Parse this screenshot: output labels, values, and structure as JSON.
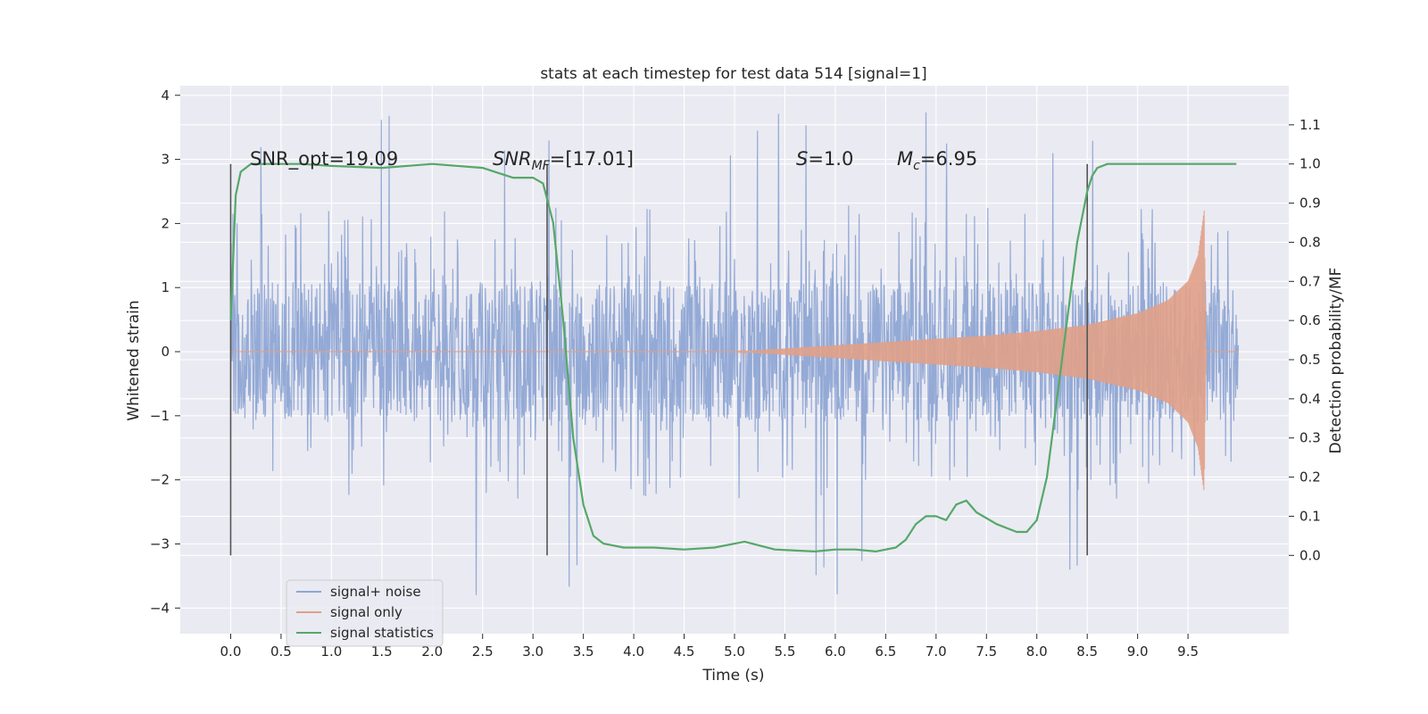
{
  "chart_data": {
    "type": "line",
    "title": "stats at each timestep for test data 514 [signal=1]",
    "xlabel": "Time (s)",
    "ylabel": "Whitened strain",
    "ylabel_right": "Detection probability/MF",
    "xlim": [
      -0.5,
      10.5
    ],
    "ylim": [
      -4.4,
      4.15
    ],
    "ylim_right": [
      -0.2,
      1.2
    ],
    "x_ticks": [
      "0.0",
      "0.5",
      "1.0",
      "1.5",
      "2.0",
      "2.5",
      "3.0",
      "3.5",
      "4.0",
      "4.5",
      "5.0",
      "5.5",
      "6.0",
      "6.5",
      "7.0",
      "7.5",
      "8.0",
      "8.5",
      "9.0",
      "9.5"
    ],
    "y_ticks": [
      "4",
      "3",
      "2",
      "1",
      "0",
      "−1",
      "−2",
      "−3",
      "−4"
    ],
    "y_ticks_right": [
      "1.1",
      "1.0",
      "0.9",
      "0.8",
      "0.7",
      "0.6",
      "0.5",
      "0.4",
      "0.3",
      "0.2",
      "0.1",
      "0.0"
    ],
    "grid": true,
    "legend_placement": "lower-left",
    "annotations": {
      "snr_opt": "SNR_opt=19.09",
      "snr_mf_main": "SNR",
      "snr_mf_sub": "MF",
      "snr_mf_value": "=[17.01]",
      "s_main": "S",
      "s_value": "=1.0",
      "mc_main": "M",
      "mc_sub": "c",
      "mc_value": "=6.95"
    },
    "vertical_markers_x": [
      0.0,
      3.14,
      8.5
    ],
    "series": [
      {
        "name": "signal+ noise",
        "color": "#8fa6d4",
        "axis": "left",
        "kind": "noise",
        "duration": 10.0,
        "band": 1.1,
        "typical_peak": 2.3,
        "extreme_peak": 3.8
      },
      {
        "name": "signal only",
        "color": "#e0a088",
        "axis": "left",
        "kind": "chirp",
        "envelope_x": [
          0.0,
          5.0,
          5.5,
          6.0,
          6.5,
          7.0,
          7.5,
          8.0,
          8.5,
          9.0,
          9.3,
          9.5,
          9.6,
          9.66,
          9.68,
          10.0
        ],
        "envelope_y": [
          0.0,
          0.0,
          0.05,
          0.1,
          0.15,
          0.2,
          0.25,
          0.32,
          0.42,
          0.6,
          0.8,
          1.1,
          1.5,
          2.2,
          0.0,
          0.0
        ]
      },
      {
        "name": "signal statistics",
        "color": "#55a868",
        "axis": "right",
        "x": [
          0.0,
          0.05,
          0.1,
          0.15,
          0.2,
          0.4,
          0.7,
          1.0,
          1.5,
          2.0,
          2.5,
          2.8,
          3.0,
          3.1,
          3.2,
          3.3,
          3.4,
          3.5,
          3.6,
          3.7,
          3.9,
          4.2,
          4.5,
          4.8,
          5.1,
          5.4,
          5.8,
          6.0,
          6.2,
          6.4,
          6.6,
          6.7,
          6.8,
          6.9,
          7.0,
          7.1,
          7.2,
          7.3,
          7.4,
          7.6,
          7.8,
          7.9,
          8.0,
          8.1,
          8.2,
          8.3,
          8.4,
          8.5,
          8.55,
          8.6,
          8.7,
          9.0,
          9.5,
          9.98
        ],
        "y": [
          0.6,
          0.92,
          0.98,
          0.99,
          1.0,
          1.0,
          1.0,
          0.995,
          0.99,
          1.0,
          0.99,
          0.965,
          0.965,
          0.95,
          0.85,
          0.6,
          0.3,
          0.13,
          0.05,
          0.03,
          0.02,
          0.02,
          0.015,
          0.02,
          0.035,
          0.015,
          0.01,
          0.015,
          0.015,
          0.01,
          0.02,
          0.04,
          0.08,
          0.1,
          0.1,
          0.09,
          0.13,
          0.14,
          0.11,
          0.08,
          0.06,
          0.06,
          0.09,
          0.2,
          0.4,
          0.6,
          0.8,
          0.93,
          0.97,
          0.99,
          1.0,
          1.0,
          1.0,
          1.0
        ]
      }
    ]
  }
}
